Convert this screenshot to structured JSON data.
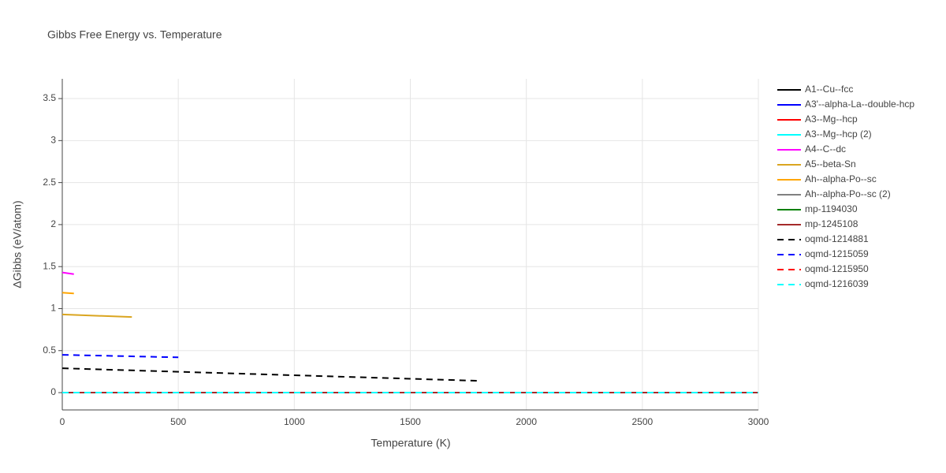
{
  "chart_data": {
    "type": "line",
    "title": "Gibbs Free Energy vs. Temperature",
    "x_label": "Temperature (K)",
    "y_label": "ΔGibbs (eV/atom)",
    "xlim": [
      0,
      3000
    ],
    "xticks": [
      0,
      500,
      1000,
      1500,
      2000,
      2500,
      3000
    ],
    "ylim": [
      -0.206,
      3.735
    ],
    "yticks": [
      0,
      0.5,
      1,
      1.5,
      2,
      2.5,
      3,
      3.5
    ],
    "grid": true,
    "legend": "right",
    "series": [
      {
        "name": "A1--Cu--fcc",
        "color": "#000000",
        "dash": false,
        "x": [
          0,
          3000
        ],
        "values": [
          0,
          0
        ]
      },
      {
        "name": "A3'--alpha-La--double-hcp",
        "color": "#0000ff",
        "dash": false,
        "x": [
          0,
          3000
        ],
        "values": [
          0,
          0
        ]
      },
      {
        "name": "A3--Mg--hcp",
        "color": "#ff0000",
        "dash": false,
        "x": [
          0,
          3000
        ],
        "values": [
          0,
          0
        ]
      },
      {
        "name": "A3--Mg--hcp (2)",
        "color": "#00ffff",
        "dash": false,
        "x": [
          0,
          3000
        ],
        "values": [
          0,
          0
        ]
      },
      {
        "name": "A4--C--dc",
        "color": "#ff00ff",
        "dash": false,
        "x": [
          0,
          50
        ],
        "values": [
          1.43,
          1.41
        ]
      },
      {
        "name": "A5--beta-Sn",
        "color": "#daa520",
        "dash": false,
        "x": [
          0,
          300
        ],
        "values": [
          0.93,
          0.9
        ]
      },
      {
        "name": "Ah--alpha-Po--sc",
        "color": "#ffa500",
        "dash": false,
        "x": [
          0,
          50
        ],
        "values": [
          1.19,
          1.18
        ]
      },
      {
        "name": "Ah--alpha-Po--sc (2)",
        "color": "#808080",
        "dash": false,
        "x": [
          0,
          3000
        ],
        "values": [
          0,
          0
        ]
      },
      {
        "name": "mp-1194030",
        "color": "#008000",
        "dash": false,
        "x": [
          0,
          3000
        ],
        "values": [
          0,
          0
        ]
      },
      {
        "name": "mp-1245108",
        "color": "#a52a2a",
        "dash": false,
        "x": [
          0,
          3000
        ],
        "values": [
          0,
          0
        ]
      },
      {
        "name": "oqmd-1214881",
        "color": "#000000",
        "dash": true,
        "x": [
          0,
          1800
        ],
        "values": [
          0.29,
          0.14
        ]
      },
      {
        "name": "oqmd-1215059",
        "color": "#0000ff",
        "dash": true,
        "x": [
          0,
          500
        ],
        "values": [
          0.45,
          0.42
        ]
      },
      {
        "name": "oqmd-1215950",
        "color": "#ff0000",
        "dash": true,
        "x": [
          0,
          3000
        ],
        "values": [
          0,
          0
        ]
      },
      {
        "name": "oqmd-1216039",
        "color": "#00ffff",
        "dash": true,
        "x": [
          0,
          3000
        ],
        "values": [
          0,
          0
        ]
      }
    ]
  }
}
